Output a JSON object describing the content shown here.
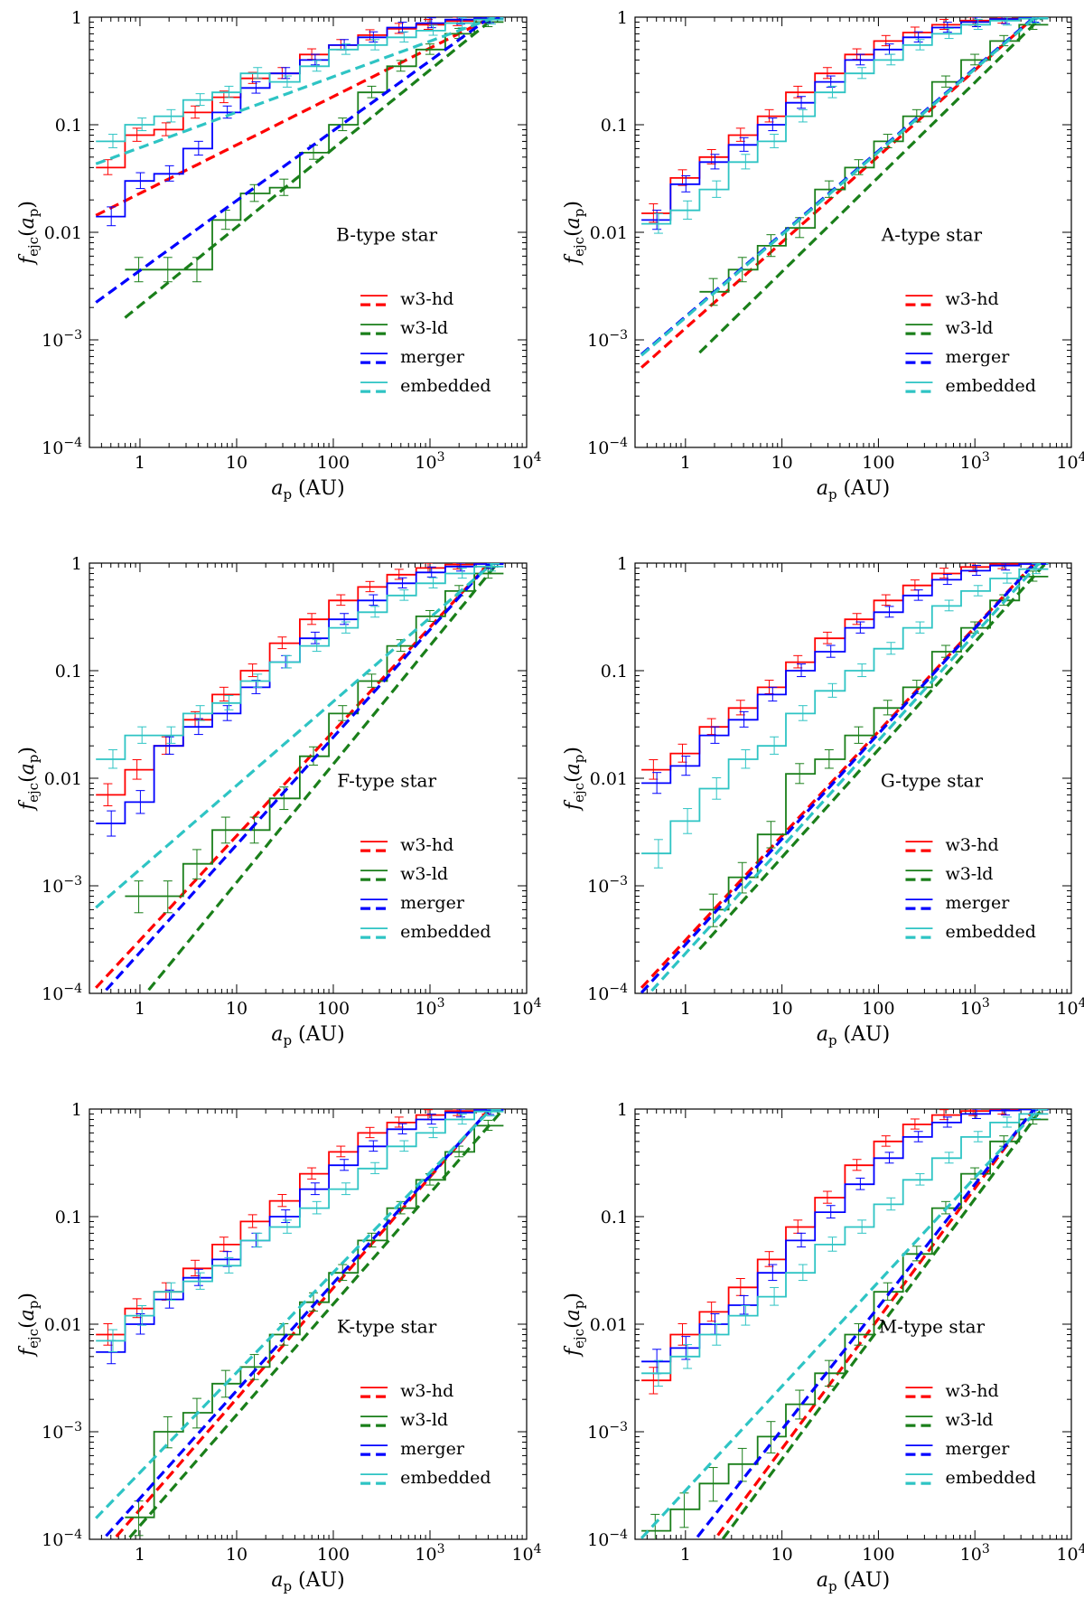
{
  "figure": {
    "xlabel_symbol": "a",
    "xlabel_sub": "p",
    "xlabel_unit": "(AU)",
    "ylabel_symbol": "f",
    "ylabel_sub": "ejc",
    "ylabel_arg_symbol": "a",
    "ylabel_arg_sub": "p",
    "legend_labels": [
      "w3-hd",
      "w3-ld",
      "merger",
      "embedded"
    ],
    "colors": {
      "w3-hd": "#ff0000",
      "w3-ld": "#1a7f1a",
      "merger": "#0000ff",
      "embedded": "#2ec4c4"
    }
  },
  "chart_data": [
    {
      "type": "line",
      "title": "B-type star",
      "xscale": "log",
      "yscale": "log",
      "xlim": [
        0.3,
        10000
      ],
      "ylim": [
        0.0001,
        1
      ],
      "xticklabels": [
        "1",
        "10",
        "100",
        "10^3",
        "10^4"
      ],
      "yticklabels": [
        "10^-4",
        "10^-3",
        "0.01",
        "0.1",
        "1"
      ],
      "legend_position": "lower-right",
      "bin_edges": [
        0.35,
        0.7,
        1.4,
        2.8,
        5.6,
        11,
        22,
        45,
        90,
        180,
        360,
        720,
        1440,
        2880,
        5760
      ],
      "series": [
        {
          "name": "w3-hd",
          "step": [
            0.04,
            0.08,
            0.09,
            0.13,
            0.18,
            0.27,
            0.3,
            0.45,
            0.55,
            0.68,
            0.78,
            0.85,
            0.92,
            0.97
          ],
          "fit_exp": 0.45,
          "fit_from": 0.35
        },
        {
          "name": "w3-ld",
          "step": [
            null,
            0.0045,
            0.0045,
            0.0045,
            0.013,
            0.023,
            0.026,
            0.055,
            0.1,
            0.2,
            0.35,
            0.5,
            0.7,
            0.9
          ],
          "fit_exp": 0.73,
          "fit_from": 0.7
        },
        {
          "name": "merger",
          "step": [
            0.014,
            0.03,
            0.035,
            0.06,
            0.13,
            0.22,
            0.3,
            0.4,
            0.55,
            0.65,
            0.8,
            0.88,
            0.95,
            0.98
          ],
          "fit_exp": 0.65,
          "fit_from": 0.35
        },
        {
          "name": "embedded",
          "step": [
            0.07,
            0.1,
            0.12,
            0.17,
            0.2,
            0.3,
            0.25,
            0.35,
            0.5,
            0.55,
            0.65,
            0.75,
            0.88,
            0.95
          ],
          "fit_exp": 0.33,
          "fit_from": 0.35
        }
      ]
    },
    {
      "type": "line",
      "title": "A-type star",
      "xscale": "log",
      "yscale": "log",
      "xlim": [
        0.3,
        10000
      ],
      "ylim": [
        0.0001,
        1
      ],
      "xticklabels": [
        "1",
        "10",
        "100",
        "10^3",
        "10^4"
      ],
      "yticklabels": [
        "10^-4",
        "10^-3",
        "0.01",
        "0.1",
        "1"
      ],
      "legend_position": "lower-right",
      "bin_edges": [
        0.35,
        0.7,
        1.4,
        2.8,
        5.6,
        11,
        22,
        45,
        90,
        180,
        360,
        720,
        1440,
        2880,
        5760
      ],
      "series": [
        {
          "name": "w3-hd",
          "step": [
            0.015,
            0.032,
            0.05,
            0.08,
            0.12,
            0.2,
            0.3,
            0.45,
            0.6,
            0.72,
            0.85,
            0.93,
            0.97,
            0.99
          ],
          "fit_exp": 0.8,
          "fit_from": 0.35
        },
        {
          "name": "w3-ld",
          "step": [
            null,
            null,
            0.0028,
            0.0045,
            0.0075,
            0.011,
            0.025,
            0.04,
            0.07,
            0.12,
            0.25,
            0.4,
            0.6,
            0.85
          ],
          "fit_exp": 0.88,
          "fit_from": 1.4
        },
        {
          "name": "merger",
          "step": [
            0.013,
            0.028,
            0.045,
            0.065,
            0.1,
            0.16,
            0.25,
            0.4,
            0.5,
            0.65,
            0.8,
            0.9,
            0.96,
            0.99
          ],
          "fit_exp": 0.77,
          "fit_from": 0.35
        },
        {
          "name": "embedded",
          "step": [
            0.012,
            0.016,
            0.025,
            0.045,
            0.07,
            0.12,
            0.2,
            0.3,
            0.4,
            0.55,
            0.7,
            0.85,
            0.93,
            0.97
          ],
          "fit_exp": 0.77,
          "fit_from": 0.35
        }
      ]
    },
    {
      "type": "line",
      "title": "F-type star",
      "xscale": "log",
      "yscale": "log",
      "xlim": [
        0.3,
        10000
      ],
      "ylim": [
        0.0001,
        1
      ],
      "xticklabels": [
        "1",
        "10",
        "100",
        "10^3",
        "10^4"
      ],
      "yticklabels": [
        "10^-4",
        "10^-3",
        "0.01",
        "0.1",
        "1"
      ],
      "legend_position": "lower-right",
      "bin_edges": [
        0.35,
        0.7,
        1.4,
        2.8,
        5.6,
        11,
        22,
        45,
        90,
        180,
        360,
        720,
        1440,
        2880,
        5760
      ],
      "series": [
        {
          "name": "w3-hd",
          "step": [
            0.007,
            0.012,
            0.02,
            0.035,
            0.06,
            0.1,
            0.18,
            0.3,
            0.45,
            0.6,
            0.78,
            0.9,
            0.97,
            0.99
          ],
          "fit_exp": 0.97,
          "fit_from": 0.35
        },
        {
          "name": "w3-ld",
          "step": [
            null,
            0.0008,
            0.0008,
            0.0016,
            0.0033,
            0.0033,
            0.0065,
            0.016,
            0.04,
            0.08,
            0.17,
            0.32,
            0.55,
            0.8
          ],
          "fit_exp": 1.1,
          "fit_from": 0.7
        },
        {
          "name": "merger",
          "step": [
            0.0038,
            0.006,
            0.02,
            0.03,
            0.04,
            0.07,
            0.12,
            0.2,
            0.3,
            0.45,
            0.65,
            0.82,
            0.93,
            0.98
          ],
          "fit_exp": 1.0,
          "fit_from": 0.35
        },
        {
          "name": "embedded",
          "step": [
            0.015,
            0.025,
            0.025,
            0.04,
            0.05,
            0.08,
            0.12,
            0.17,
            0.25,
            0.35,
            0.5,
            0.65,
            0.8,
            0.93
          ],
          "fit_exp": 0.78,
          "fit_from": 0.35
        }
      ]
    },
    {
      "type": "line",
      "title": "G-type star",
      "xscale": "log",
      "yscale": "log",
      "xlim": [
        0.3,
        10000
      ],
      "ylim": [
        0.0001,
        1
      ],
      "xticklabels": [
        "1",
        "10",
        "100",
        "10^3",
        "10^4"
      ],
      "yticklabels": [
        "10^-4",
        "10^-3",
        "0.01",
        "0.1",
        "1"
      ],
      "legend_position": "lower-right",
      "bin_edges": [
        0.35,
        0.7,
        1.4,
        2.8,
        5.6,
        11,
        22,
        45,
        90,
        180,
        360,
        720,
        1440,
        2880,
        5760
      ],
      "series": [
        {
          "name": "w3-hd",
          "step": [
            0.012,
            0.017,
            0.03,
            0.045,
            0.07,
            0.12,
            0.2,
            0.3,
            0.45,
            0.62,
            0.8,
            0.92,
            0.98,
            0.99
          ],
          "fit_exp": 0.97,
          "fit_from": 0.35
        },
        {
          "name": "w3-ld",
          "step": [
            null,
            null,
            0.0006,
            0.0012,
            0.003,
            0.011,
            0.015,
            0.025,
            0.045,
            0.07,
            0.15,
            0.25,
            0.45,
            0.75
          ],
          "fit_exp": 1.0,
          "fit_from": 1.4
        },
        {
          "name": "merger",
          "step": [
            0.009,
            0.013,
            0.025,
            0.035,
            0.06,
            0.1,
            0.15,
            0.25,
            0.35,
            0.5,
            0.7,
            0.85,
            0.95,
            0.98
          ],
          "fit_exp": 0.98,
          "fit_from": 0.35
        },
        {
          "name": "embedded",
          "step": [
            0.002,
            0.004,
            0.008,
            0.015,
            0.02,
            0.04,
            0.065,
            0.1,
            0.16,
            0.25,
            0.4,
            0.55,
            0.72,
            0.88
          ],
          "fit_exp": 0.99,
          "fit_from": 0.35
        }
      ]
    },
    {
      "type": "line",
      "title": "K-type star",
      "xscale": "log",
      "yscale": "log",
      "xlim": [
        0.3,
        10000
      ],
      "ylim": [
        0.0001,
        1
      ],
      "xticklabels": [
        "1",
        "10",
        "100",
        "10^3",
        "10^4"
      ],
      "yticklabels": [
        "10^-4",
        "10^-3",
        "0.01",
        "0.1",
        "1"
      ],
      "legend_position": "lower-right",
      "bin_edges": [
        0.35,
        0.7,
        1.4,
        2.8,
        5.6,
        11,
        22,
        45,
        90,
        180,
        360,
        720,
        1440,
        2880,
        5760
      ],
      "series": [
        {
          "name": "w3-hd",
          "step": [
            0.008,
            0.014,
            0.02,
            0.033,
            0.055,
            0.09,
            0.14,
            0.25,
            0.4,
            0.6,
            0.75,
            0.88,
            0.96,
            0.99
          ],
          "fit_exp": 1.03,
          "fit_from": 0.35
        },
        {
          "name": "w3-ld",
          "step": [
            null,
            0.00016,
            0.001,
            0.0015,
            0.0028,
            0.004,
            0.008,
            0.016,
            0.03,
            0.06,
            0.12,
            0.22,
            0.4,
            0.7
          ],
          "fit_exp": 1.03,
          "fit_from": 0.7
        },
        {
          "name": "merger",
          "step": [
            0.0055,
            0.01,
            0.017,
            0.027,
            0.04,
            0.06,
            0.1,
            0.18,
            0.3,
            0.45,
            0.65,
            0.8,
            0.93,
            0.98
          ],
          "fit_exp": 1.0,
          "fit_from": 0.35
        },
        {
          "name": "embedded",
          "step": [
            0.007,
            0.012,
            0.02,
            0.025,
            0.035,
            0.06,
            0.08,
            0.12,
            0.18,
            0.28,
            0.45,
            0.6,
            0.8,
            0.95
          ],
          "fit_exp": 0.93,
          "fit_from": 0.35
        }
      ]
    },
    {
      "type": "line",
      "title": "M-type star",
      "xscale": "log",
      "yscale": "log",
      "xlim": [
        0.3,
        10000
      ],
      "ylim": [
        0.0001,
        1
      ],
      "xticklabels": [
        "1",
        "10",
        "100",
        "10^3",
        "10^4"
      ],
      "yticklabels": [
        "10^-4",
        "10^-3",
        "0.01",
        "0.1",
        "1"
      ],
      "legend_position": "lower-right",
      "bin_edges": [
        0.35,
        0.7,
        1.4,
        2.8,
        5.6,
        11,
        22,
        45,
        90,
        180,
        360,
        720,
        1440,
        2880,
        5760
      ],
      "series": [
        {
          "name": "w3-hd",
          "step": [
            0.003,
            0.008,
            0.013,
            0.022,
            0.04,
            0.08,
            0.15,
            0.3,
            0.5,
            0.72,
            0.88,
            0.96,
            0.99,
            1.0
          ],
          "fit_exp": 1.21,
          "fit_from": 0.35
        },
        {
          "name": "w3-ld",
          "step": [
            0.00012,
            0.00019,
            0.00033,
            0.0005,
            0.0009,
            0.0018,
            0.0035,
            0.008,
            0.02,
            0.045,
            0.12,
            0.25,
            0.5,
            0.8
          ],
          "fit_exp": 1.21,
          "fit_from": 0.35
        },
        {
          "name": "merger",
          "step": [
            0.0045,
            0.006,
            0.01,
            0.015,
            0.03,
            0.06,
            0.11,
            0.2,
            0.35,
            0.55,
            0.75,
            0.9,
            0.97,
            0.99
          ],
          "fit_exp": 1.14,
          "fit_from": 0.35
        },
        {
          "name": "embedded",
          "step": [
            0.0035,
            0.005,
            0.008,
            0.012,
            0.018,
            0.03,
            0.055,
            0.08,
            0.13,
            0.22,
            0.35,
            0.55,
            0.75,
            0.9
          ],
          "fit_exp": 0.97,
          "fit_from": 0.35
        }
      ]
    }
  ]
}
